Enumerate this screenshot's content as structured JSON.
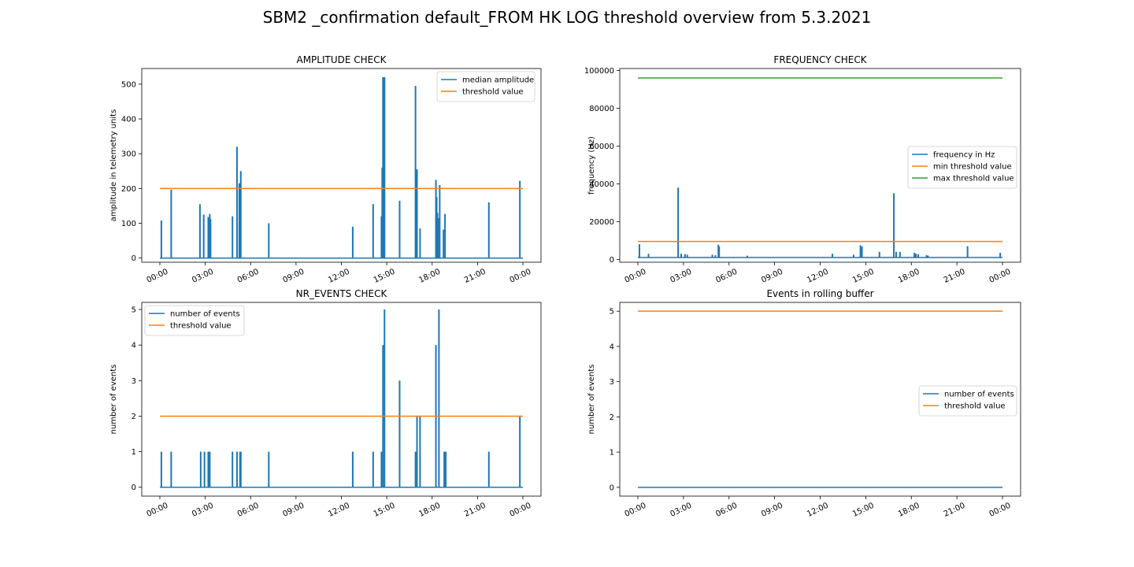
{
  "figure": {
    "suptitle": "SBM2 _confirmation default_FROM HK LOG threshold overview from 5.3.2021"
  },
  "chart_data": [
    {
      "type": "line",
      "title": "AMPLITUDE CHECK",
      "xlabel": "",
      "ylabel": "amplitude in telemetry units",
      "x_unit": "hours",
      "xlim": [
        0,
        24
      ],
      "ylim": [
        -12,
        545
      ],
      "xticks": [
        0,
        3,
        6,
        9,
        12,
        15,
        18,
        21,
        24
      ],
      "xtick_labels": [
        "00:00",
        "03:00",
        "06:00",
        "09:00",
        "12:00",
        "15:00",
        "18:00",
        "21:00",
        "00:00"
      ],
      "yticks": [
        0,
        100,
        200,
        300,
        400,
        500
      ],
      "legend_position": "upper right",
      "series": [
        {
          "name": "median amplitude",
          "color": "#1f77b4",
          "kind": "spikes",
          "baseline": 0,
          "spikes": [
            [
              0.1,
              108
            ],
            [
              0.75,
              197
            ],
            [
              2.65,
              155
            ],
            [
              2.9,
              125
            ],
            [
              3.2,
              118
            ],
            [
              3.3,
              127
            ],
            [
              3.35,
              112
            ],
            [
              4.8,
              120
            ],
            [
              5.1,
              320
            ],
            [
              5.25,
              215
            ],
            [
              5.3,
              215
            ],
            [
              5.35,
              250
            ],
            [
              7.2,
              100
            ],
            [
              12.75,
              90
            ],
            [
              14.1,
              155
            ],
            [
              14.65,
              120
            ],
            [
              14.7,
              260
            ],
            [
              14.75,
              520
            ],
            [
              14.8,
              520
            ],
            [
              14.85,
              520
            ],
            [
              15.85,
              165
            ],
            [
              16.9,
              495
            ],
            [
              16.95,
              255
            ],
            [
              17.0,
              255
            ],
            [
              17.2,
              85
            ],
            [
              18.25,
              225
            ],
            [
              18.3,
              175
            ],
            [
              18.35,
              130
            ],
            [
              18.4,
              115
            ],
            [
              18.5,
              210
            ],
            [
              18.75,
              82
            ],
            [
              18.85,
              127
            ],
            [
              21.75,
              160
            ],
            [
              23.8,
              222
            ]
          ]
        },
        {
          "name": "threshold value",
          "color": "#ff7f0e",
          "kind": "hline",
          "value": 200
        }
      ]
    },
    {
      "type": "line",
      "title": "FREQUENCY CHECK",
      "xlabel": "",
      "ylabel": "frequency (Hz)",
      "x_unit": "hours",
      "xlim": [
        0,
        24
      ],
      "ylim": [
        -1500,
        101000
      ],
      "xticks": [
        0,
        3,
        6,
        9,
        12,
        15,
        18,
        21,
        24
      ],
      "xtick_labels": [
        "00:00",
        "03:00",
        "06:00",
        "09:00",
        "12:00",
        "15:00",
        "18:00",
        "21:00",
        "00:00"
      ],
      "yticks": [
        0,
        20000,
        40000,
        60000,
        80000,
        100000
      ],
      "legend_position": "center right",
      "series": [
        {
          "name": "frequency in Hz",
          "color": "#1f77b4",
          "kind": "spikes",
          "baseline": 1000,
          "spikes": [
            [
              0.1,
              8000
            ],
            [
              0.7,
              3000
            ],
            [
              2.65,
              38000
            ],
            [
              2.85,
              3000
            ],
            [
              3.1,
              2800
            ],
            [
              3.25,
              2500
            ],
            [
              4.9,
              2500
            ],
            [
              5.1,
              2200
            ],
            [
              5.3,
              7800
            ],
            [
              5.35,
              6800
            ],
            [
              7.2,
              2000
            ],
            [
              12.8,
              3000
            ],
            [
              14.2,
              2500
            ],
            [
              14.65,
              7500
            ],
            [
              14.75,
              6800
            ],
            [
              15.9,
              4000
            ],
            [
              16.85,
              35000
            ],
            [
              17.0,
              4000
            ],
            [
              17.25,
              4000
            ],
            [
              18.2,
              3500
            ],
            [
              18.3,
              3000
            ],
            [
              18.45,
              2800
            ],
            [
              19.0,
              2200
            ],
            [
              19.1,
              2000
            ],
            [
              21.7,
              7000
            ],
            [
              23.85,
              3500
            ]
          ]
        },
        {
          "name": "min threshold value",
          "color": "#ff7f0e",
          "kind": "hline",
          "value": 9500
        },
        {
          "name": "max threshold value",
          "color": "#2ca02c",
          "kind": "hline",
          "value": 96000
        }
      ]
    },
    {
      "type": "line",
      "title": "NR_EVENTS CHECK",
      "xlabel": "",
      "ylabel": "number of events",
      "x_unit": "hours",
      "xlim": [
        0,
        24
      ],
      "ylim": [
        -0.25,
        5.2
      ],
      "xticks": [
        0,
        3,
        6,
        9,
        12,
        15,
        18,
        21,
        24
      ],
      "xtick_labels": [
        "00:00",
        "03:00",
        "06:00",
        "09:00",
        "12:00",
        "15:00",
        "18:00",
        "21:00",
        "00:00"
      ],
      "yticks": [
        0,
        1,
        2,
        3,
        4,
        5
      ],
      "legend_position": "upper left",
      "series": [
        {
          "name": "number of events",
          "color": "#1f77b4",
          "kind": "spikes",
          "baseline": 0,
          "spikes": [
            [
              0.1,
              1
            ],
            [
              0.75,
              1
            ],
            [
              2.7,
              1
            ],
            [
              2.95,
              1
            ],
            [
              3.2,
              1
            ],
            [
              3.3,
              1
            ],
            [
              4.8,
              1
            ],
            [
              5.1,
              1
            ],
            [
              5.3,
              1
            ],
            [
              5.35,
              1
            ],
            [
              7.2,
              1
            ],
            [
              12.75,
              1
            ],
            [
              14.1,
              1
            ],
            [
              14.65,
              1
            ],
            [
              14.75,
              4
            ],
            [
              14.85,
              5
            ],
            [
              15.85,
              3
            ],
            [
              16.9,
              1
            ],
            [
              17.0,
              2
            ],
            [
              17.2,
              2
            ],
            [
              18.25,
              4
            ],
            [
              18.45,
              5
            ],
            [
              18.8,
              1
            ],
            [
              18.9,
              1
            ],
            [
              21.75,
              1
            ],
            [
              23.8,
              2
            ]
          ]
        },
        {
          "name": "threshold value",
          "color": "#ff7f0e",
          "kind": "hline",
          "value": 2
        }
      ]
    },
    {
      "type": "line",
      "title": "Events in rolling buffer",
      "xlabel": "",
      "ylabel": "number of events",
      "x_unit": "hours",
      "xlim": [
        0,
        24
      ],
      "ylim": [
        -0.25,
        5.25
      ],
      "xticks": [
        0,
        3,
        6,
        9,
        12,
        15,
        18,
        21,
        24
      ],
      "xtick_labels": [
        "00:00",
        "03:00",
        "06:00",
        "09:00",
        "12:00",
        "15:00",
        "18:00",
        "21:00",
        "00:00"
      ],
      "yticks": [
        0,
        1,
        2,
        3,
        4,
        5
      ],
      "legend_position": "center right",
      "series": [
        {
          "name": "number of events",
          "color": "#1f77b4",
          "kind": "hline",
          "value": 0
        },
        {
          "name": "threshold value",
          "color": "#ff7f0e",
          "kind": "hline",
          "value": 5
        }
      ]
    }
  ]
}
